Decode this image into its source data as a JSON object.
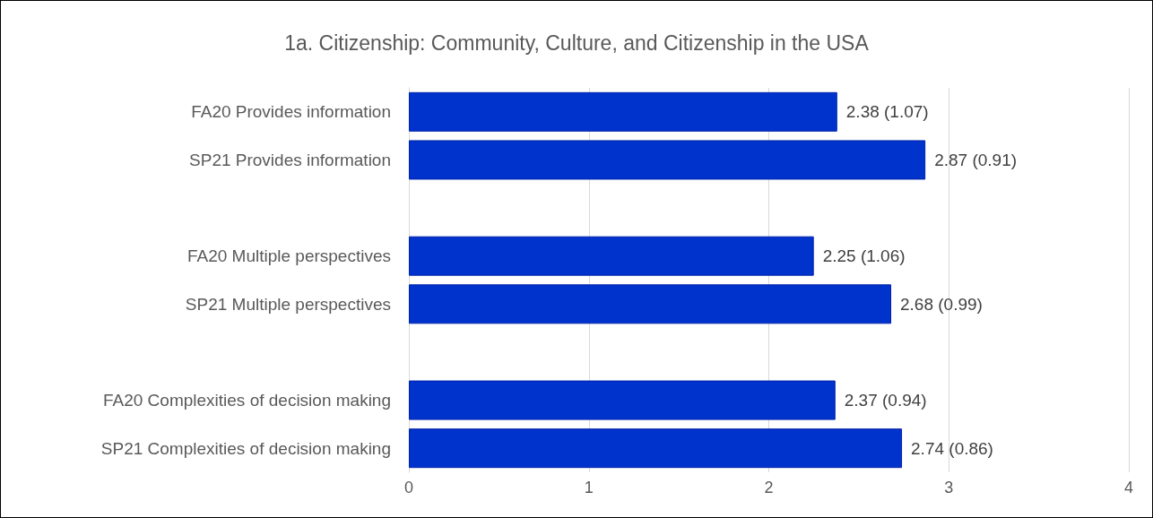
{
  "chart_data": {
    "type": "bar",
    "orientation": "horizontal",
    "title": "1a. Citizenship: Community, Culture, and Citizenship in the USA",
    "categories": [
      "FA20 Provides information",
      "SP21 Provides information",
      null,
      "FA20 Multiple perspectives",
      "SP21 Multiple perspectives",
      null,
      "FA20 Complexities of decision making",
      "SP21 Complexities of decision making"
    ],
    "values": [
      2.38,
      2.87,
      null,
      2.25,
      2.68,
      null,
      2.37,
      2.74
    ],
    "value_labels": [
      "2.38 (1.07)",
      "2.87 (0.91)",
      null,
      "2.25 (1.06)",
      "2.68 (0.99)",
      null,
      "2.37 (0.94)",
      "2.74 (0.86)"
    ],
    "color": "#0033cc",
    "xlim": [
      0,
      4
    ],
    "xticks": [
      0,
      1,
      2,
      3,
      4
    ],
    "grid": "x"
  }
}
